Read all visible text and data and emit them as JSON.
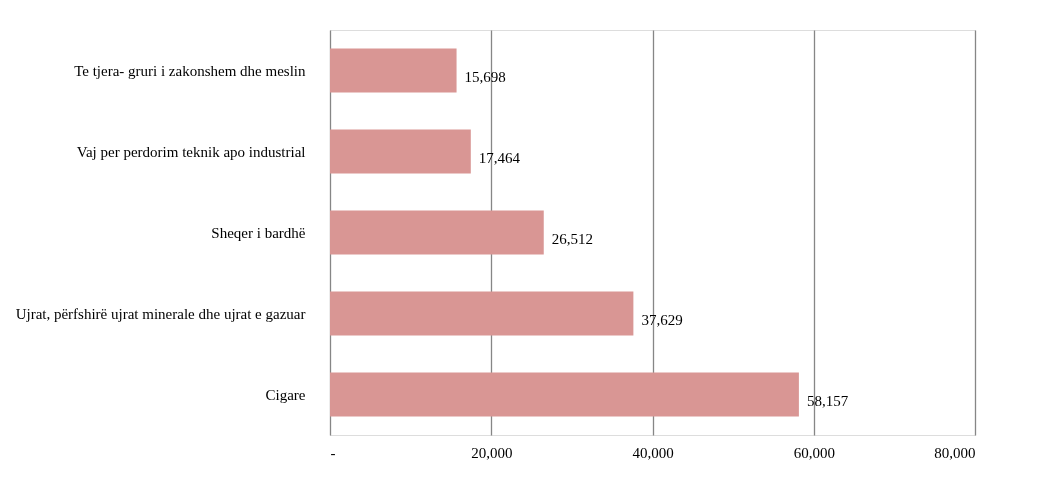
{
  "chart_data": {
    "type": "bar",
    "orientation": "horizontal",
    "categories": [
      "Te tjera- gruri i zakonshem dhe meslin",
      "Vaj per perdorim teknik apo industrial",
      "Sheqer i bardhë",
      "Ujrat, përfshirë ujrat minerale dhe ujrat e gazuar",
      "Cigare"
    ],
    "values": [
      15698,
      17464,
      26512,
      37629,
      58157
    ],
    "value_labels": [
      "15,698",
      "17,464",
      "26,512",
      "37,629",
      "58,157"
    ],
    "color": "#d99694",
    "xlim": [
      0,
      80000
    ],
    "xticks": [
      {
        "value": 0,
        "label": "-"
      },
      {
        "value": 20000,
        "label": "20,000"
      },
      {
        "value": 40000,
        "label": "40,000"
      },
      {
        "value": 60000,
        "label": "60,000"
      },
      {
        "value": 80000,
        "label": "80,000"
      }
    ],
    "grid": "x"
  }
}
